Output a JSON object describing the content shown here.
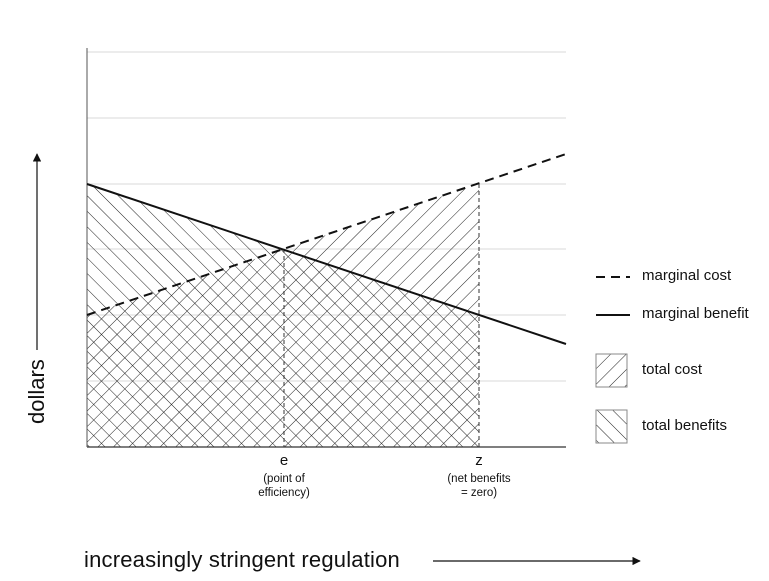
{
  "x_ticks": [
    {
      "id": "e",
      "label": "e",
      "sub": [
        "(point of",
        "efficiency)"
      ]
    },
    {
      "id": "z",
      "label": "z",
      "sub": [
        "(net benefits",
        "= zero)"
      ]
    }
  ],
  "y_axis_label": "dollars",
  "x_axis_label": "increasingly stringent regulation",
  "legend": [
    {
      "id": "mc",
      "label": "marginal cost",
      "symbol": "dashed-line"
    },
    {
      "id": "mb",
      "label": "marginal benefit",
      "symbol": "solid-line"
    },
    {
      "id": "tc",
      "label": "total cost",
      "symbol": "forward-hatch"
    },
    {
      "id": "tb",
      "label": "total benefits",
      "symbol": "back-hatch"
    }
  ]
}
